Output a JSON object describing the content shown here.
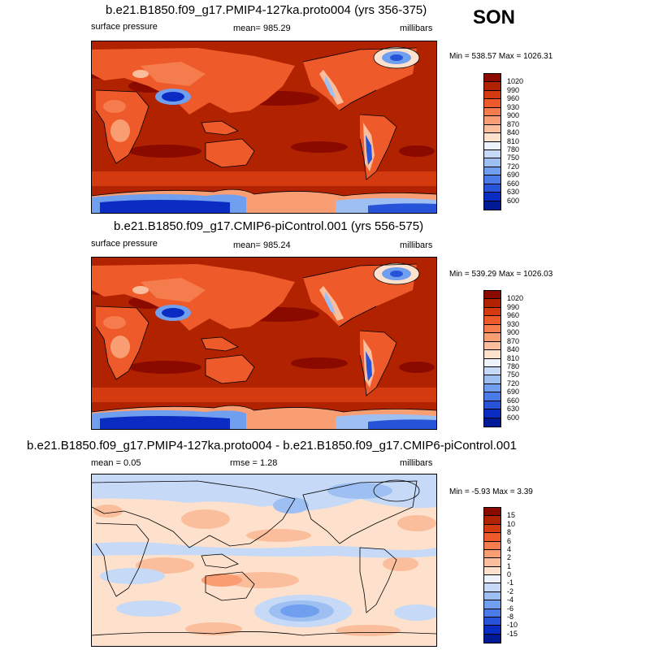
{
  "season": "SON",
  "panels": [
    {
      "title": "b.e21.B1850.f09_g17.PMIP4-127ka.proto004 (yrs 356-375)",
      "left": "surface pressure",
      "center": "mean= 985.29",
      "right": "millibars",
      "minmax": "Min = 538.57 Max = 1026.31",
      "colorbar": {
        "labels": [
          "1020",
          "990",
          "960",
          "930",
          "900",
          "870",
          "840",
          "810",
          "780",
          "750",
          "720",
          "690",
          "660",
          "630",
          "600"
        ],
        "colors": [
          "#8b0a00",
          "#b02200",
          "#d43a10",
          "#ee5a2a",
          "#f57c4c",
          "#f99d72",
          "#fbbe9c",
          "#fde1cc",
          "#eef2fb",
          "#c6d9f7",
          "#9ebff2",
          "#709ff0",
          "#4a7be8",
          "#2653d8",
          "#0a2cc2",
          "#001a96"
        ]
      }
    },
    {
      "title": "b.e21.B1850.f09_g17.CMIP6-piControl.001 (yrs 556-575)",
      "left": "surface pressure",
      "center": "mean= 985.24",
      "right": "millibars",
      "minmax": "Min = 539.29 Max = 1026.03",
      "colorbar": {
        "labels": [
          "1020",
          "990",
          "960",
          "930",
          "900",
          "870",
          "840",
          "810",
          "780",
          "750",
          "720",
          "690",
          "660",
          "630",
          "600"
        ],
        "colors": [
          "#8b0a00",
          "#b02200",
          "#d43a10",
          "#ee5a2a",
          "#f57c4c",
          "#f99d72",
          "#fbbe9c",
          "#fde1cc",
          "#eef2fb",
          "#c6d9f7",
          "#9ebff2",
          "#709ff0",
          "#4a7be8",
          "#2653d8",
          "#0a2cc2",
          "#001a96"
        ]
      }
    },
    {
      "title": "b.e21.B1850.f09_g17.PMIP4-127ka.proto004 - b.e21.B1850.f09_g17.CMIP6-piControl.001",
      "left": "mean =   0.05",
      "center": "rmse =   1.28",
      "right": "millibars",
      "minmax": "Min =  -5.93 Max =   3.39",
      "colorbar": {
        "labels": [
          "15",
          "10",
          "8",
          "6",
          "4",
          "2",
          "1",
          "0",
          "-1",
          "-2",
          "-4",
          "-6",
          "-8",
          "-10",
          "-15"
        ],
        "colors": [
          "#8b0a00",
          "#b02200",
          "#d43a10",
          "#ee5a2a",
          "#f57c4c",
          "#f99d72",
          "#fbbe9c",
          "#fde1cc",
          "#eef2fb",
          "#c6d9f7",
          "#9ebff2",
          "#709ff0",
          "#4a7be8",
          "#2653d8",
          "#0a2cc2",
          "#001a96"
        ]
      }
    }
  ]
}
